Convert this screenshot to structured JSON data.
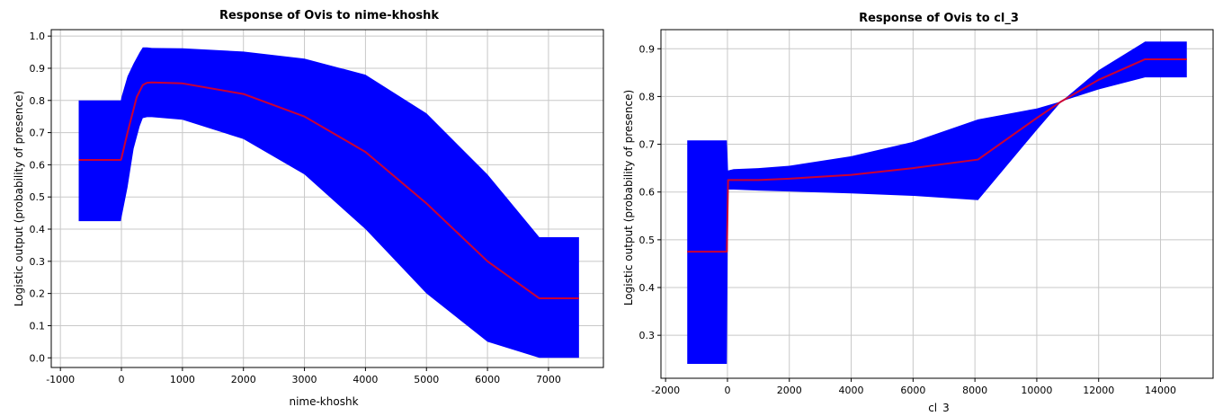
{
  "chart_data": [
    {
      "type": "area",
      "title": "Response of Ovis to nime-khoshk",
      "xlabel": "nime-khoshk",
      "ylabel": "Logistic output (probability of presence)",
      "xlim": [
        -1150,
        7900
      ],
      "ylim": [
        -0.03,
        1.02
      ],
      "xticks": [
        -1000,
        0,
        1000,
        2000,
        3000,
        4000,
        5000,
        6000,
        7000
      ],
      "yticks": [
        0.0,
        0.1,
        0.2,
        0.3,
        0.4,
        0.5,
        0.6,
        0.7,
        0.8,
        0.9,
        1.0
      ],
      "xtick_labels": [
        "-1000",
        "0",
        "1000",
        "2000",
        "3000",
        "4000",
        "5000",
        "6000",
        "7000"
      ],
      "ytick_labels": [
        "0.0",
        "0.1",
        "0.2",
        "0.3",
        "0.4",
        "0.5",
        "0.6",
        "0.7",
        "0.8",
        "0.9",
        "1.0"
      ],
      "grid": true,
      "band_color": "#0000ff",
      "line_color": "#cc0033",
      "series": [
        {
          "x": [
            -700,
            -10,
            0,
            100,
            250,
            350,
            420,
            500,
            1000,
            2000,
            3000,
            4000,
            5000,
            6000,
            6850,
            6860,
            7500
          ],
          "values": [
            0.615,
            0.615,
            0.62,
            0.7,
            0.81,
            0.848,
            0.855,
            0.856,
            0.853,
            0.82,
            0.75,
            0.64,
            0.48,
            0.3,
            0.185,
            0.185,
            0.185
          ]
        },
        {
          "x": [
            -700,
            -10,
            0,
            100,
            200,
            300,
            350,
            420,
            500,
            1000,
            2000,
            3000,
            4000,
            5000,
            6000,
            6850,
            6860,
            7500
          ],
          "values": [
            0.8,
            0.8,
            0.81,
            0.875,
            0.915,
            0.95,
            0.965,
            0.965,
            0.963,
            0.962,
            0.952,
            0.93,
            0.88,
            0.76,
            0.57,
            0.375,
            0.375,
            0.375
          ]
        },
        {
          "x": [
            -700,
            -10,
            0,
            100,
            200,
            300,
            350,
            420,
            500,
            1000,
            2000,
            3000,
            4000,
            5000,
            6000,
            6850,
            6860,
            7500
          ],
          "values": [
            0.425,
            0.425,
            0.435,
            0.53,
            0.65,
            0.72,
            0.745,
            0.748,
            0.748,
            0.74,
            0.68,
            0.57,
            0.4,
            0.2,
            0.05,
            0.0,
            0.0,
            0.0
          ]
        }
      ]
    },
    {
      "type": "area",
      "title": "Response of Ovis to cl_3",
      "xlabel": "cl_3",
      "ylabel": "Logistic output (probability of presence)",
      "xlim": [
        -2150,
        15700
      ],
      "ylim": [
        0.21,
        0.94
      ],
      "xticks": [
        -2000,
        0,
        2000,
        4000,
        6000,
        8000,
        10000,
        12000,
        14000
      ],
      "yticks": [
        0.3,
        0.4,
        0.5,
        0.6,
        0.7,
        0.8,
        0.9
      ],
      "xtick_labels": [
        "-2000",
        "0",
        "2000",
        "4000",
        "6000",
        "8000",
        "10000",
        "12000",
        "14000"
      ],
      "ytick_labels": [
        "0.3",
        "0.4",
        "0.5",
        "0.6",
        "0.7",
        "0.8",
        "0.9"
      ],
      "grid": true,
      "band_color": "#0000ff",
      "line_color": "#cc0033",
      "series": [
        {
          "x": [
            -1300,
            -20,
            20,
            200,
            1000,
            2000,
            4000,
            6000,
            8100,
            10000,
            10800,
            12000,
            13500,
            14850
          ],
          "values": [
            0.475,
            0.475,
            0.625,
            0.625,
            0.625,
            0.628,
            0.636,
            0.65,
            0.668,
            0.755,
            0.79,
            0.835,
            0.878,
            0.878
          ]
        },
        {
          "x": [
            -1300,
            -20,
            20,
            200,
            1000,
            2000,
            4000,
            6000,
            8100,
            10000,
            10800,
            12000,
            13500,
            14850
          ],
          "values": [
            0.708,
            0.708,
            0.645,
            0.648,
            0.65,
            0.655,
            0.675,
            0.705,
            0.752,
            0.775,
            0.79,
            0.855,
            0.915,
            0.915
          ]
        },
        {
          "x": [
            -1300,
            -20,
            20,
            200,
            1000,
            2000,
            4000,
            6000,
            8100,
            10000,
            10800,
            12000,
            13500,
            14850
          ],
          "values": [
            0.24,
            0.24,
            0.605,
            0.605,
            0.603,
            0.601,
            0.597,
            0.592,
            0.583,
            0.73,
            0.79,
            0.815,
            0.84,
            0.84
          ]
        }
      ]
    }
  ]
}
